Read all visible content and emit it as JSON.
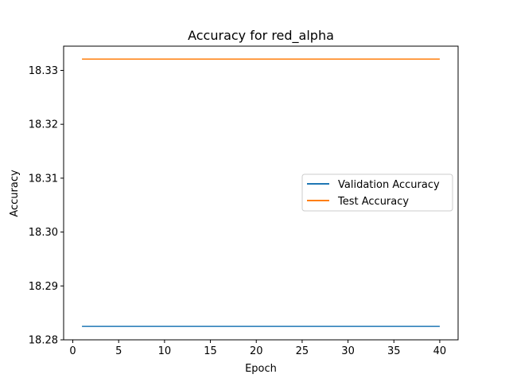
{
  "chart_data": {
    "type": "line",
    "title": "Accuracy for red_alpha",
    "xlabel": "Epoch",
    "ylabel": "Accuracy",
    "xlim": [
      -1,
      42
    ],
    "ylim": [
      18.28,
      18.3345
    ],
    "xticks": [
      0,
      5,
      10,
      15,
      20,
      25,
      30,
      35,
      40
    ],
    "yticks": [
      18.28,
      18.29,
      18.3,
      18.31,
      18.32,
      18.33
    ],
    "ytick_labels": [
      "18.28",
      "18.29",
      "18.30",
      "18.31",
      "18.32",
      "18.33"
    ],
    "grid": false,
    "legend_position": "center-right",
    "series": [
      {
        "name": "Validation Accuracy",
        "color": "#1f77b4",
        "x": [
          1,
          40
        ],
        "values": [
          18.2825,
          18.2825
        ]
      },
      {
        "name": "Test Accuracy",
        "color": "#ff7f0e",
        "x": [
          1,
          40
        ],
        "values": [
          18.3321,
          18.3321
        ]
      }
    ]
  }
}
